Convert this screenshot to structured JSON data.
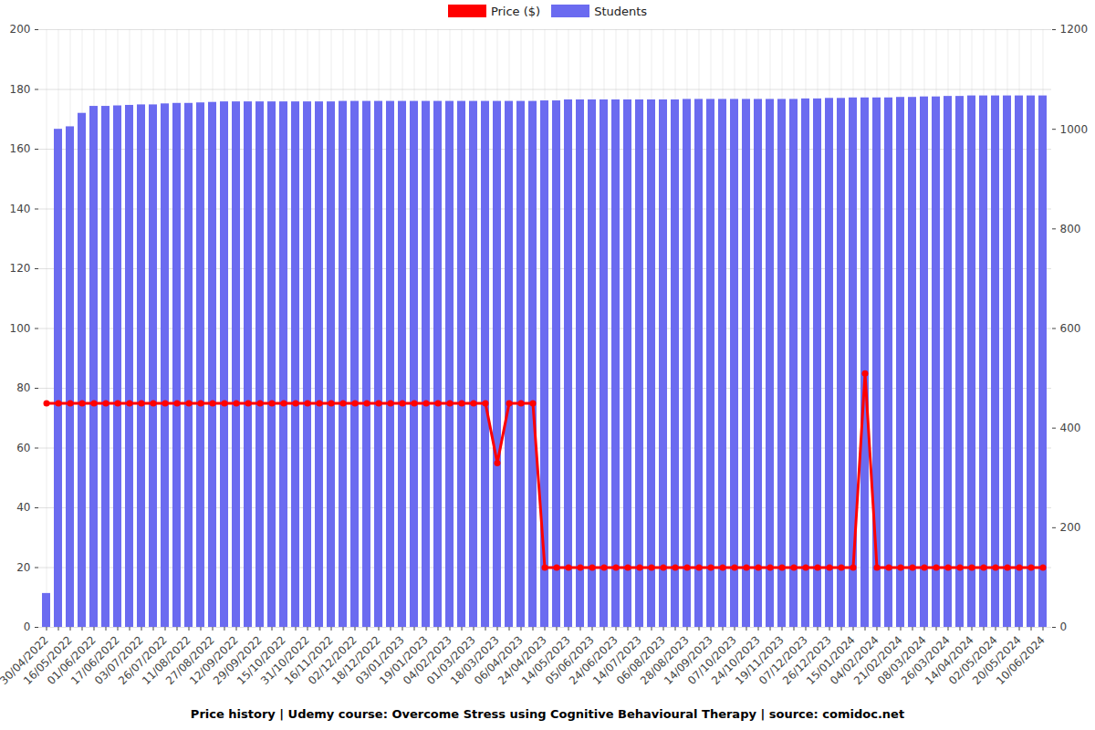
{
  "chart_data": {
    "type": "bar",
    "title": "Price history | Udemy course: Overcome Stress using Cognitive Behavioural Therapy | source: comidoc.net",
    "categories": [
      "30/04/2022",
      null,
      "16/05/2022",
      null,
      "01/06/2022",
      null,
      "17/06/2022",
      null,
      "03/07/2022",
      null,
      "26/07/2022",
      null,
      "11/08/2022",
      null,
      "27/08/2022",
      null,
      "12/09/2022",
      null,
      "29/09/2022",
      null,
      "15/10/2022",
      null,
      "31/10/2022",
      null,
      "16/11/2022",
      null,
      "02/12/2022",
      null,
      "18/12/2022",
      null,
      "03/01/2023",
      null,
      "19/01/2023",
      null,
      "04/02/2023",
      null,
      "01/03/2023",
      null,
      "18/03/2023",
      null,
      "06/04/2023",
      null,
      "24/04/2023",
      null,
      "14/05/2023",
      null,
      "05/06/2023",
      null,
      "24/06/2023",
      null,
      "14/07/2023",
      null,
      "06/08/2023",
      null,
      "28/08/2023",
      null,
      "14/09/2023",
      null,
      "07/10/2023",
      null,
      "24/10/2023",
      null,
      "19/11/2023",
      null,
      "07/12/2023",
      null,
      "26/12/2023",
      null,
      "15/01/2024",
      null,
      "04/02/2024",
      null,
      "21/02/2024",
      null,
      "08/03/2024",
      null,
      "26/03/2024",
      null,
      "14/04/2024",
      null,
      "02/05/2024",
      null,
      "20/05/2024",
      null,
      "10/06/2024"
    ],
    "series": [
      {
        "name": "Price ($)",
        "type": "line",
        "color": "#ff0000",
        "marker": "circle",
        "values": [
          75,
          75,
          75,
          75,
          75,
          75,
          75,
          75,
          75,
          75,
          75,
          75,
          75,
          75,
          75,
          75,
          75,
          75,
          75,
          75,
          75,
          75,
          75,
          75,
          75,
          75,
          75,
          75,
          75,
          75,
          75,
          75,
          75,
          75,
          75,
          75,
          75,
          75,
          55,
          75,
          75,
          75,
          20,
          20,
          20,
          20,
          20,
          20,
          20,
          20,
          20,
          20,
          20,
          20,
          20,
          20,
          20,
          20,
          20,
          20,
          20,
          20,
          20,
          20,
          20,
          20,
          20,
          20,
          20,
          85,
          20,
          20,
          20,
          20,
          20,
          20,
          20,
          20,
          20,
          20,
          20,
          20,
          20,
          20,
          20
        ]
      },
      {
        "name": "Students",
        "type": "bar",
        "color": "#6b6bf0",
        "axis": "y2",
        "values": [
          68,
          1000,
          1005,
          1032,
          1046,
          1046,
          1047,
          1048,
          1049,
          1049,
          1051,
          1052,
          1052,
          1053,
          1054,
          1055,
          1055,
          1055,
          1055,
          1055,
          1055,
          1055,
          1055,
          1055,
          1055,
          1056,
          1056,
          1056,
          1056,
          1056,
          1056,
          1056,
          1056,
          1056,
          1056,
          1056,
          1056,
          1056,
          1056,
          1056,
          1056,
          1056,
          1057,
          1057,
          1059,
          1059,
          1059,
          1059,
          1059,
          1059,
          1059,
          1059,
          1059,
          1059,
          1060,
          1060,
          1060,
          1060,
          1060,
          1060,
          1060,
          1060,
          1060,
          1060,
          1061,
          1061,
          1062,
          1062,
          1063,
          1063,
          1063,
          1063,
          1064,
          1064,
          1065,
          1065,
          1066,
          1066,
          1067,
          1067,
          1067,
          1067,
          1067,
          1067,
          1067
        ]
      }
    ],
    "ylim": [
      0,
      200
    ],
    "yticks": [
      0,
      20,
      40,
      60,
      80,
      100,
      120,
      140,
      160,
      180,
      200
    ],
    "y2lim": [
      0,
      1200
    ],
    "y2ticks": [
      0,
      200,
      400,
      600,
      800,
      1000,
      1200
    ],
    "grid": true,
    "legend": "top"
  }
}
